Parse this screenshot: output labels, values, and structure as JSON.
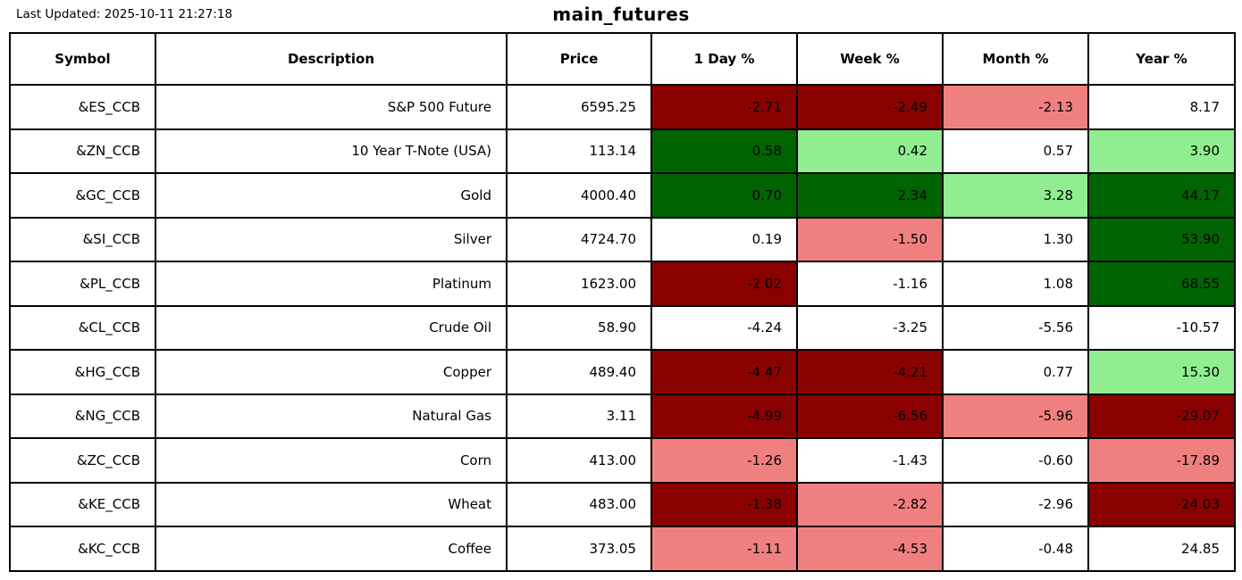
{
  "header": {
    "last_updated": "Last Updated: 2025-10-11 21:27:18",
    "title": "main_futures"
  },
  "colors": {
    "strong_down": "#8B0000",
    "mild_down": "#F08080",
    "strong_up": "#006400",
    "mild_up": "#90EE90",
    "neutral": "#FFFFFF"
  },
  "chart_data": {
    "type": "table",
    "title": "main_futures",
    "columns": [
      "Symbol",
      "Description",
      "Price",
      "1 Day %",
      "Week %",
      "Month %",
      "Year %"
    ],
    "rows": [
      {
        "symbol": "&ES_CCB",
        "description": "S&P 500 Future",
        "price": "6595.25",
        "day": {
          "v": "-2.71",
          "c": "strong_down"
        },
        "week": {
          "v": "-2.49",
          "c": "strong_down"
        },
        "month": {
          "v": "-2.13",
          "c": "mild_down"
        },
        "year": {
          "v": "8.17",
          "c": "neutral"
        }
      },
      {
        "symbol": "&ZN_CCB",
        "description": "10 Year T-Note (USA)",
        "price": "113.14",
        "day": {
          "v": "0.58",
          "c": "strong_up"
        },
        "week": {
          "v": "0.42",
          "c": "mild_up"
        },
        "month": {
          "v": "0.57",
          "c": "neutral"
        },
        "year": {
          "v": "3.90",
          "c": "mild_up"
        }
      },
      {
        "symbol": "&GC_CCB",
        "description": "Gold",
        "price": "4000.40",
        "day": {
          "v": "0.70",
          "c": "strong_up"
        },
        "week": {
          "v": "2.34",
          "c": "strong_up"
        },
        "month": {
          "v": "3.28",
          "c": "mild_up"
        },
        "year": {
          "v": "44.17",
          "c": "strong_up"
        }
      },
      {
        "symbol": "&SI_CCB",
        "description": "Silver",
        "price": "4724.70",
        "day": {
          "v": "0.19",
          "c": "neutral"
        },
        "week": {
          "v": "-1.50",
          "c": "mild_down"
        },
        "month": {
          "v": "1.30",
          "c": "neutral"
        },
        "year": {
          "v": "53.90",
          "c": "strong_up"
        }
      },
      {
        "symbol": "&PL_CCB",
        "description": "Platinum",
        "price": "1623.00",
        "day": {
          "v": "-2.02",
          "c": "strong_down"
        },
        "week": {
          "v": "-1.16",
          "c": "neutral"
        },
        "month": {
          "v": "1.08",
          "c": "neutral"
        },
        "year": {
          "v": "68.55",
          "c": "strong_up"
        }
      },
      {
        "symbol": "&CL_CCB",
        "description": "Crude Oil",
        "price": "58.90",
        "day": {
          "v": "-4.24",
          "c": "neutral"
        },
        "week": {
          "v": "-3.25",
          "c": "neutral"
        },
        "month": {
          "v": "-5.56",
          "c": "neutral"
        },
        "year": {
          "v": "-10.57",
          "c": "neutral"
        }
      },
      {
        "symbol": "&HG_CCB",
        "description": "Copper",
        "price": "489.40",
        "day": {
          "v": "-4.47",
          "c": "strong_down"
        },
        "week": {
          "v": "-4.21",
          "c": "strong_down"
        },
        "month": {
          "v": "0.77",
          "c": "neutral"
        },
        "year": {
          "v": "15.30",
          "c": "mild_up"
        }
      },
      {
        "symbol": "&NG_CCB",
        "description": "Natural Gas",
        "price": "3.11",
        "day": {
          "v": "-4.99",
          "c": "strong_down"
        },
        "week": {
          "v": "-6.56",
          "c": "strong_down"
        },
        "month": {
          "v": "-5.96",
          "c": "mild_down"
        },
        "year": {
          "v": "-29.07",
          "c": "strong_down"
        }
      },
      {
        "symbol": "&ZC_CCB",
        "description": "Corn",
        "price": "413.00",
        "day": {
          "v": "-1.26",
          "c": "mild_down"
        },
        "week": {
          "v": "-1.43",
          "c": "neutral"
        },
        "month": {
          "v": "-0.60",
          "c": "neutral"
        },
        "year": {
          "v": "-17.89",
          "c": "mild_down"
        }
      },
      {
        "symbol": "&KE_CCB",
        "description": "Wheat",
        "price": "483.00",
        "day": {
          "v": "-1.38",
          "c": "strong_down"
        },
        "week": {
          "v": "-2.82",
          "c": "mild_down"
        },
        "month": {
          "v": "-2.96",
          "c": "neutral"
        },
        "year": {
          "v": "-24.03",
          "c": "strong_down"
        }
      },
      {
        "symbol": "&KC_CCB",
        "description": "Coffee",
        "price": "373.05",
        "day": {
          "v": "-1.11",
          "c": "mild_down"
        },
        "week": {
          "v": "-4.53",
          "c": "mild_down"
        },
        "month": {
          "v": "-0.48",
          "c": "neutral"
        },
        "year": {
          "v": "24.85",
          "c": "neutral"
        }
      }
    ]
  }
}
